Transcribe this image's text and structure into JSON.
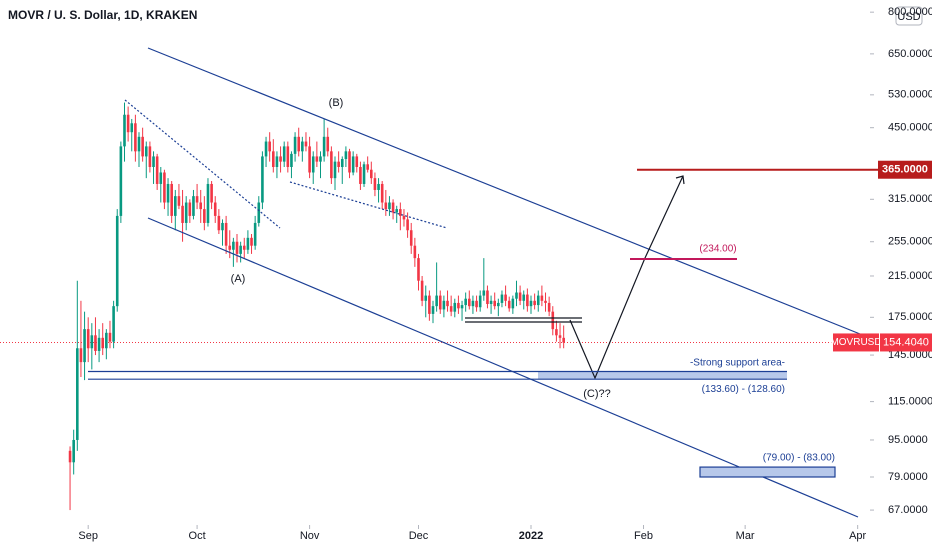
{
  "chart_data": {
    "type": "candlestick",
    "title": "MOVR / U. S. Dollar, 1D, KRAKEN",
    "symbol": "MOVRUSD",
    "currency": "USD",
    "log_scale": true,
    "up_color": "#089981",
    "down_color": "#f23645",
    "ylim": [
      62.2,
      850
    ],
    "yticks": [
      {
        "value": 67,
        "label": "67.0000"
      },
      {
        "value": 79,
        "label": "79.0000"
      },
      {
        "value": 95,
        "label": "95.0000"
      },
      {
        "value": 115,
        "label": "115.0000"
      },
      {
        "value": 145,
        "label": "145.0000"
      },
      {
        "value": 175,
        "label": "175.0000"
      },
      {
        "value": 215,
        "label": "215.0000"
      },
      {
        "value": 255,
        "label": "255.0000"
      },
      {
        "value": 315,
        "label": "315.0000"
      },
      {
        "value": 450,
        "label": "450.0000"
      },
      {
        "value": 530,
        "label": "530.0000"
      },
      {
        "value": 650,
        "label": "650.0000"
      },
      {
        "value": 800,
        "label": "800.0000"
      }
    ],
    "xlim": [
      -19.3,
      220.4
    ],
    "xticks": [
      {
        "value": 5,
        "label": "Sep"
      },
      {
        "value": 35,
        "label": "Oct"
      },
      {
        "value": 66,
        "label": "Nov"
      },
      {
        "value": 96,
        "label": "Dec"
      },
      {
        "value": 127,
        "label": "2022"
      },
      {
        "value": 158,
        "label": "Feb"
      },
      {
        "value": 186,
        "label": "Mar"
      },
      {
        "value": 217,
        "label": "Apr"
      }
    ],
    "open": [
      90,
      85,
      95,
      150,
      140,
      165,
      150,
      160,
      148,
      158,
      150,
      162,
      155,
      185,
      290,
      410,
      480,
      440,
      460,
      400,
      430,
      390,
      410,
      370,
      390,
      340,
      360,
      310,
      340,
      290,
      320,
      305,
      280,
      310,
      290,
      320,
      310,
      300,
      280,
      340,
      310,
      290,
      270,
      280,
      250,
      245,
      255,
      240,
      250,
      245,
      260,
      250,
      280,
      310,
      390,
      420,
      400,
      370,
      390,
      380,
      410,
      370,
      395,
      430,
      400,
      420,
      410,
      360,
      390,
      380,
      390,
      430,
      400,
      350,
      380,
      370,
      385,
      400,
      360,
      390,
      370,
      340,
      375,
      365,
      350,
      330,
      340,
      310,
      300,
      310,
      295,
      300,
      290,
      285,
      270,
      250,
      235,
      210,
      190,
      195,
      178,
      185,
      195,
      182,
      190,
      185,
      180,
      188,
      183,
      186,
      192,
      185,
      190,
      184,
      195,
      200,
      187,
      190,
      185,
      188,
      196,
      190,
      183,
      192,
      198,
      190,
      196,
      185,
      190,
      186,
      195,
      190,
      188,
      180,
      165,
      160,
      158
    ],
    "high": [
      92,
      100,
      210,
      190,
      180,
      175,
      170,
      175,
      165,
      170,
      165,
      172,
      190,
      300,
      420,
      510,
      500,
      470,
      480,
      440,
      450,
      420,
      420,
      400,
      395,
      370,
      365,
      350,
      345,
      330,
      340,
      330,
      320,
      315,
      330,
      340,
      330,
      320,
      350,
      345,
      320,
      300,
      285,
      290,
      270,
      260,
      265,
      255,
      260,
      270,
      265,
      290,
      320,
      400,
      430,
      440,
      425,
      400,
      410,
      420,
      420,
      400,
      440,
      450,
      430,
      440,
      430,
      400,
      420,
      400,
      470,
      450,
      410,
      390,
      400,
      390,
      410,
      405,
      400,
      395,
      380,
      380,
      390,
      380,
      360,
      350,
      345,
      330,
      320,
      315,
      305,
      310,
      300,
      295,
      280,
      260,
      240,
      215,
      205,
      200,
      190,
      230,
      200,
      195,
      200,
      195,
      192,
      195,
      190,
      198,
      200,
      195,
      195,
      200,
      235,
      205,
      195,
      198,
      192,
      200,
      205,
      194,
      195,
      210,
      205,
      200,
      202,
      195,
      197,
      200,
      205,
      198,
      194,
      185,
      172,
      170,
      168
    ],
    "low": [
      67,
      80,
      90,
      130,
      128,
      140,
      135,
      145,
      140,
      145,
      142,
      150,
      150,
      180,
      280,
      380,
      420,
      400,
      380,
      370,
      380,
      350,
      360,
      340,
      330,
      310,
      300,
      290,
      280,
      270,
      300,
      255,
      270,
      280,
      285,
      300,
      280,
      270,
      275,
      300,
      280,
      265,
      250,
      240,
      235,
      225,
      230,
      230,
      235,
      240,
      240,
      245,
      275,
      300,
      370,
      380,
      360,
      350,
      360,
      370,
      360,
      350,
      380,
      390,
      380,
      400,
      350,
      340,
      370,
      350,
      380,
      390,
      340,
      330,
      360,
      340,
      370,
      350,
      355,
      360,
      330,
      335,
      360,
      340,
      320,
      310,
      300,
      290,
      290,
      285,
      280,
      270,
      275,
      260,
      240,
      225,
      200,
      185,
      175,
      172,
      170,
      180,
      178,
      175,
      180,
      176,
      175,
      178,
      172,
      180,
      182,
      178,
      180,
      180,
      190,
      183,
      178,
      182,
      176,
      184,
      185,
      180,
      178,
      185,
      186,
      182,
      180,
      178,
      182,
      180,
      185,
      180,
      176,
      160,
      155,
      150,
      150
    ],
    "close": [
      85,
      95,
      150,
      140,
      165,
      150,
      160,
      148,
      158,
      150,
      162,
      155,
      185,
      290,
      410,
      480,
      440,
      460,
      400,
      430,
      390,
      410,
      370,
      390,
      340,
      360,
      310,
      340,
      290,
      320,
      305,
      280,
      310,
      290,
      320,
      310,
      300,
      280,
      340,
      310,
      290,
      270,
      280,
      250,
      245,
      255,
      240,
      250,
      245,
      260,
      250,
      280,
      310,
      390,
      420,
      400,
      370,
      390,
      380,
      410,
      370,
      395,
      430,
      400,
      420,
      410,
      360,
      390,
      380,
      390,
      430,
      400,
      350,
      380,
      370,
      385,
      400,
      360,
      390,
      370,
      340,
      375,
      365,
      350,
      330,
      340,
      310,
      300,
      310,
      295,
      300,
      290,
      285,
      270,
      250,
      235,
      210,
      190,
      195,
      178,
      185,
      195,
      182,
      190,
      185,
      180,
      188,
      183,
      186,
      192,
      185,
      190,
      184,
      195,
      200,
      187,
      190,
      185,
      188,
      196,
      190,
      183,
      192,
      198,
      190,
      196,
      185,
      190,
      186,
      195,
      190,
      188,
      180,
      165,
      160,
      158,
      154.404
    ],
    "last_price": {
      "value": 154.404,
      "label": "154.4040"
    },
    "level": {
      "value": 365,
      "label": "365.0000"
    },
    "target": {
      "value": 234,
      "label": "(234.00)"
    },
    "support_text": "-Strong support area-",
    "zones": [
      {
        "low": 128.6,
        "high": 133.6,
        "label": "(133.60) - (128.60)"
      },
      {
        "low": 79,
        "high": 83,
        "label": "(79.00) - (83.00)"
      }
    ],
    "annotations": [
      "(A)",
      "(B)",
      "(C)??"
    ]
  }
}
